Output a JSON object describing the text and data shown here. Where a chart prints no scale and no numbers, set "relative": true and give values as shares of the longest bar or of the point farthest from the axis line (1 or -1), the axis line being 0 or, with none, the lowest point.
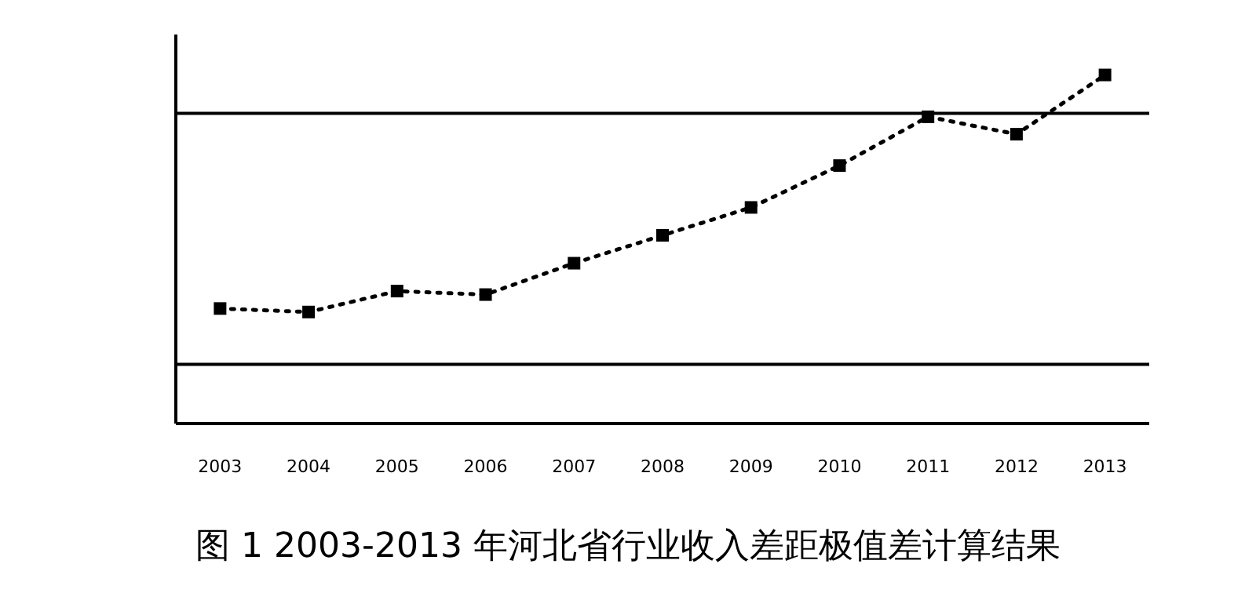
{
  "chart_data": {
    "type": "line",
    "title": "图 1 2003-2013 年河北省行业收入差距极值差计算结果",
    "categories": [
      "2003",
      "2004",
      "2005",
      "2006",
      "2007",
      "2008",
      "2009",
      "2010",
      "2011",
      "2012",
      "2013"
    ],
    "relative": true,
    "series": [
      {
        "color": "#000000",
        "values": [
          0.33,
          0.32,
          0.38,
          0.37,
          0.46,
          0.54,
          0.62,
          0.74,
          0.88,
          0.83,
          1
        ]
      }
    ],
    "ref_lines": [
      {
        "axis": "y",
        "value": 0.89,
        "color": "#000000"
      },
      {
        "axis": "y",
        "value": 0.17,
        "color": "#000000"
      }
    ],
    "marker": "square",
    "line_style": "dotted"
  }
}
